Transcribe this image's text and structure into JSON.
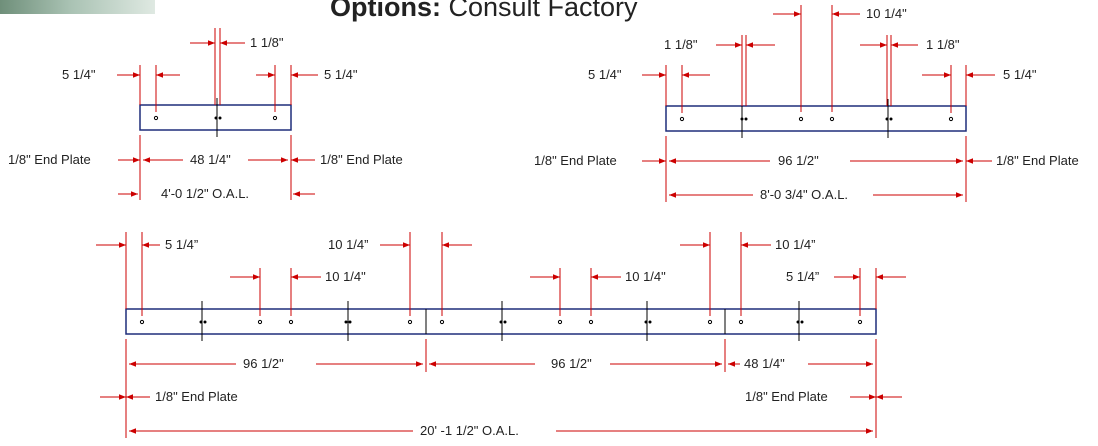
{
  "header": {
    "title_bold": "Options:",
    "title_rest": " Consult Factory"
  },
  "colors": {
    "dimension": "#cc0000",
    "rail_outline": "#1f2d7a",
    "text": "#222222"
  },
  "diagrams": {
    "rail_4ft": {
      "label_end_offset_left": "5 1/4\"",
      "label_end_offset_right": "5 1/4\"",
      "label_splice_gap": "1 1/8\"",
      "label_end_plate_left": "1/8\" End Plate",
      "label_end_plate_right": "1/8\" End Plate",
      "label_span": "48 1/4\"",
      "label_oal": "4'-0 1/2\" O.A.L."
    },
    "rail_8ft": {
      "label_center_gap": "10 1/4\"",
      "label_splice_gap_left": "1 1/8\"",
      "label_splice_gap_right": "1 1/8\"",
      "label_end_offset_left": "5 1/4\"",
      "label_end_offset_right": "5 1/4\"",
      "label_end_plate_left": "1/8\" End Plate",
      "label_end_plate_right": "1/8\" End Plate",
      "label_span": "96 1/2\"",
      "label_oal": "8'-0 3/4\" O.A.L."
    },
    "rail_20ft": {
      "label_end_offset_left": "5 1/4”",
      "label_gap_top_1": "10 1/4”",
      "label_gap_top_2": "10 1/4”",
      "label_gap_mid_1": "10 1/4\"",
      "label_gap_mid_2": "10 1/4\"",
      "label_end_offset_right": "5 1/4”",
      "label_span_1": "96 1/2\"",
      "label_span_2": "96 1/2\"",
      "label_span_3": "48 1/4\"",
      "label_end_plate_left": "1/8\" End Plate",
      "label_end_plate_right": "1/8\" End Plate",
      "label_oal": "20' -1 1/2\" O.A.L."
    }
  }
}
